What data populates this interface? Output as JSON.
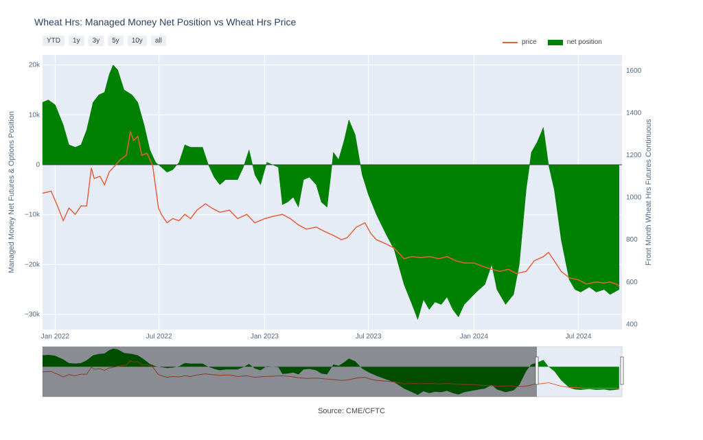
{
  "title": "Wheat Hrs: Managed Money Net Position vs Wheat Hrs Price",
  "range_buttons": [
    "YTD",
    "1y",
    "3y",
    "5y",
    "10y",
    "all"
  ],
  "legend": {
    "price": "price",
    "net_position": "net position"
  },
  "source": "Source: CME/CFTC",
  "colors": {
    "price": "#e8603c",
    "net_position": "#008000",
    "plot_bg": "#e5ecf6"
  },
  "chart_data": {
    "type": "area",
    "x_ticks": [
      {
        "date": "2022-01-01",
        "label": "Jan 2022"
      },
      {
        "date": "2022-07-01",
        "label": "Jul 2022"
      },
      {
        "date": "2023-01-01",
        "label": "Jan 2023"
      },
      {
        "date": "2023-07-01",
        "label": "Jul 2023"
      },
      {
        "date": "2024-01-01",
        "label": "Jan 2024"
      },
      {
        "date": "2024-07-01",
        "label": "Jul 2024"
      }
    ],
    "x_range": [
      "2021-12-10",
      "2024-09-15"
    ],
    "y_left": {
      "title": "Managed Money Net Futures & Options Position",
      "range": [
        -33000,
        22000
      ],
      "ticks": [
        {
          "v": 20000,
          "label": "20k"
        },
        {
          "v": 10000,
          "label": "10k"
        },
        {
          "v": 0,
          "label": "0"
        },
        {
          "v": -10000,
          "label": "−10k"
        },
        {
          "v": -20000,
          "label": "−20k"
        },
        {
          "v": -30000,
          "label": "−30k"
        }
      ]
    },
    "y_right": {
      "title": "Front Month Wheat Hrs Futures Continuous",
      "range": [
        375,
        1675
      ],
      "ticks": [
        {
          "v": 1600,
          "label": "1600"
        },
        {
          "v": 1400,
          "label": "1400"
        },
        {
          "v": 1200,
          "label": "1200"
        },
        {
          "v": 1000,
          "label": "1000"
        },
        {
          "v": 800,
          "label": "800"
        },
        {
          "v": 600,
          "label": "600"
        },
        {
          "v": 400,
          "label": "400"
        }
      ]
    },
    "net_position": [
      [
        "2021-12-10",
        12500
      ],
      [
        "2021-12-20",
        13000
      ],
      [
        "2022-01-01",
        12000
      ],
      [
        "2022-01-15",
        8000
      ],
      [
        "2022-01-25",
        4000
      ],
      [
        "2022-02-05",
        3500
      ],
      [
        "2022-02-15",
        4000
      ],
      [
        "2022-02-25",
        7000
      ],
      [
        "2022-03-08",
        12500
      ],
      [
        "2022-03-18",
        14000
      ],
      [
        "2022-03-28",
        14500
      ],
      [
        "2022-04-05",
        18000
      ],
      [
        "2022-04-12",
        20000
      ],
      [
        "2022-04-20",
        19000
      ],
      [
        "2022-05-01",
        15000
      ],
      [
        "2022-05-15",
        14000
      ],
      [
        "2022-05-25",
        12500
      ],
      [
        "2022-06-05",
        8000
      ],
      [
        "2022-06-15",
        3000
      ],
      [
        "2022-06-25",
        500
      ],
      [
        "2022-07-05",
        -500
      ],
      [
        "2022-07-15",
        -1500
      ],
      [
        "2022-07-25",
        -1000
      ],
      [
        "2022-08-05",
        500
      ],
      [
        "2022-08-15",
        4000
      ],
      [
        "2022-08-25",
        3500
      ],
      [
        "2022-09-05",
        3500
      ],
      [
        "2022-09-15",
        3500
      ],
      [
        "2022-09-25",
        0
      ],
      [
        "2022-10-05",
        -2500
      ],
      [
        "2022-10-15",
        -4000
      ],
      [
        "2022-10-25",
        -3000
      ],
      [
        "2022-11-05",
        -3000
      ],
      [
        "2022-11-15",
        -3000
      ],
      [
        "2022-11-25",
        -500
      ],
      [
        "2022-12-05",
        3000
      ],
      [
        "2022-12-15",
        -2000
      ],
      [
        "2022-12-25",
        -4000
      ],
      [
        "2023-01-05",
        500
      ],
      [
        "2023-01-15",
        0
      ],
      [
        "2023-01-25",
        -500
      ],
      [
        "2023-02-01",
        -8000
      ],
      [
        "2023-02-10",
        -7500
      ],
      [
        "2023-02-20",
        -6500
      ],
      [
        "2023-03-01",
        -8500
      ],
      [
        "2023-03-10",
        -3000
      ],
      [
        "2023-03-20",
        -2500
      ],
      [
        "2023-04-01",
        -4000
      ],
      [
        "2023-04-10",
        -7500
      ],
      [
        "2023-04-20",
        -8500
      ],
      [
        "2023-05-01",
        2500
      ],
      [
        "2023-05-10",
        1000
      ],
      [
        "2023-05-20",
        5000
      ],
      [
        "2023-05-28",
        9000
      ],
      [
        "2023-06-08",
        6000
      ],
      [
        "2023-06-20",
        -2000
      ],
      [
        "2023-07-01",
        -6000
      ],
      [
        "2023-07-15",
        -10000
      ],
      [
        "2023-08-01",
        -14000
      ],
      [
        "2023-08-15",
        -17000
      ],
      [
        "2023-09-01",
        -24000
      ],
      [
        "2023-09-15",
        -28000
      ],
      [
        "2023-09-25",
        -31000
      ],
      [
        "2023-10-05",
        -27000
      ],
      [
        "2023-10-15",
        -29000
      ],
      [
        "2023-10-25",
        -27500
      ],
      [
        "2023-11-05",
        -28000
      ],
      [
        "2023-11-15",
        -26500
      ],
      [
        "2023-11-25",
        -29000
      ],
      [
        "2023-12-05",
        -30500
      ],
      [
        "2023-12-15",
        -28000
      ],
      [
        "2024-01-01",
        -26000
      ],
      [
        "2024-01-10",
        -25000
      ],
      [
        "2024-01-20",
        -24000
      ],
      [
        "2024-02-01",
        -20000
      ],
      [
        "2024-02-10",
        -25000
      ],
      [
        "2024-02-25",
        -28000
      ],
      [
        "2024-03-10",
        -26000
      ],
      [
        "2024-03-20",
        -20000
      ],
      [
        "2024-04-01",
        -5000
      ],
      [
        "2024-04-10",
        2500
      ],
      [
        "2024-04-20",
        4500
      ],
      [
        "2024-05-01",
        7500
      ],
      [
        "2024-05-10",
        0
      ],
      [
        "2024-05-20",
        -5000
      ],
      [
        "2024-06-01",
        -15000
      ],
      [
        "2024-06-15",
        -23000
      ],
      [
        "2024-06-25",
        -25000
      ],
      [
        "2024-07-05",
        -25500
      ],
      [
        "2024-07-20",
        -24500
      ],
      [
        "2024-08-01",
        -25500
      ],
      [
        "2024-08-15",
        -25000
      ],
      [
        "2024-08-25",
        -26000
      ],
      [
        "2024-09-10",
        -25000
      ]
    ],
    "price": [
      [
        "2021-12-10",
        1020
      ],
      [
        "2021-12-25",
        1030
      ],
      [
        "2022-01-05",
        960
      ],
      [
        "2022-01-15",
        890
      ],
      [
        "2022-01-25",
        950
      ],
      [
        "2022-02-05",
        920
      ],
      [
        "2022-02-15",
        960
      ],
      [
        "2022-02-25",
        960
      ],
      [
        "2022-03-01",
        1050
      ],
      [
        "2022-03-05",
        1140
      ],
      [
        "2022-03-10",
        1090
      ],
      [
        "2022-03-20",
        1100
      ],
      [
        "2022-03-28",
        1060
      ],
      [
        "2022-04-05",
        1120
      ],
      [
        "2022-04-15",
        1150
      ],
      [
        "2022-04-25",
        1180
      ],
      [
        "2022-05-05",
        1200
      ],
      [
        "2022-05-12",
        1310
      ],
      [
        "2022-05-18",
        1270
      ],
      [
        "2022-05-25",
        1290
      ],
      [
        "2022-06-01",
        1200
      ],
      [
        "2022-06-10",
        1210
      ],
      [
        "2022-06-20",
        1150
      ],
      [
        "2022-06-30",
        950
      ],
      [
        "2022-07-05",
        920
      ],
      [
        "2022-07-15",
        880
      ],
      [
        "2022-07-25",
        900
      ],
      [
        "2022-08-05",
        890
      ],
      [
        "2022-08-15",
        920
      ],
      [
        "2022-08-25",
        900
      ],
      [
        "2022-09-05",
        940
      ],
      [
        "2022-09-20",
        970
      ],
      [
        "2022-10-01",
        950
      ],
      [
        "2022-10-15",
        930
      ],
      [
        "2022-11-01",
        940
      ],
      [
        "2022-11-15",
        900
      ],
      [
        "2022-12-01",
        920
      ],
      [
        "2022-12-15",
        880
      ],
      [
        "2023-01-01",
        900
      ],
      [
        "2023-01-15",
        910
      ],
      [
        "2023-02-01",
        920
      ],
      [
        "2023-02-15",
        900
      ],
      [
        "2023-03-01",
        870
      ],
      [
        "2023-03-15",
        850
      ],
      [
        "2023-04-01",
        860
      ],
      [
        "2023-04-15",
        840
      ],
      [
        "2023-05-01",
        820
      ],
      [
        "2023-05-15",
        800
      ],
      [
        "2023-05-25",
        810
      ],
      [
        "2023-06-10",
        860
      ],
      [
        "2023-06-25",
        880
      ],
      [
        "2023-07-05",
        830
      ],
      [
        "2023-07-15",
        800
      ],
      [
        "2023-08-01",
        780
      ],
      [
        "2023-08-15",
        760
      ],
      [
        "2023-09-01",
        710
      ],
      [
        "2023-09-15",
        720
      ],
      [
        "2023-10-01",
        715
      ],
      [
        "2023-10-15",
        720
      ],
      [
        "2023-11-01",
        710
      ],
      [
        "2023-11-15",
        720
      ],
      [
        "2023-12-01",
        700
      ],
      [
        "2023-12-15",
        690
      ],
      [
        "2024-01-01",
        690
      ],
      [
        "2024-01-15",
        675
      ],
      [
        "2024-02-01",
        660
      ],
      [
        "2024-02-15",
        650
      ],
      [
        "2024-03-01",
        660
      ],
      [
        "2024-03-15",
        640
      ],
      [
        "2024-04-01",
        650
      ],
      [
        "2024-04-15",
        700
      ],
      [
        "2024-05-01",
        720
      ],
      [
        "2024-05-10",
        740
      ],
      [
        "2024-05-20",
        700
      ],
      [
        "2024-06-01",
        650
      ],
      [
        "2024-06-15",
        620
      ],
      [
        "2024-07-01",
        610
      ],
      [
        "2024-07-15",
        590
      ],
      [
        "2024-08-01",
        600
      ],
      [
        "2024-08-15",
        595
      ],
      [
        "2024-08-25",
        600
      ],
      [
        "2024-09-05",
        590
      ],
      [
        "2024-09-10",
        580
      ]
    ]
  }
}
